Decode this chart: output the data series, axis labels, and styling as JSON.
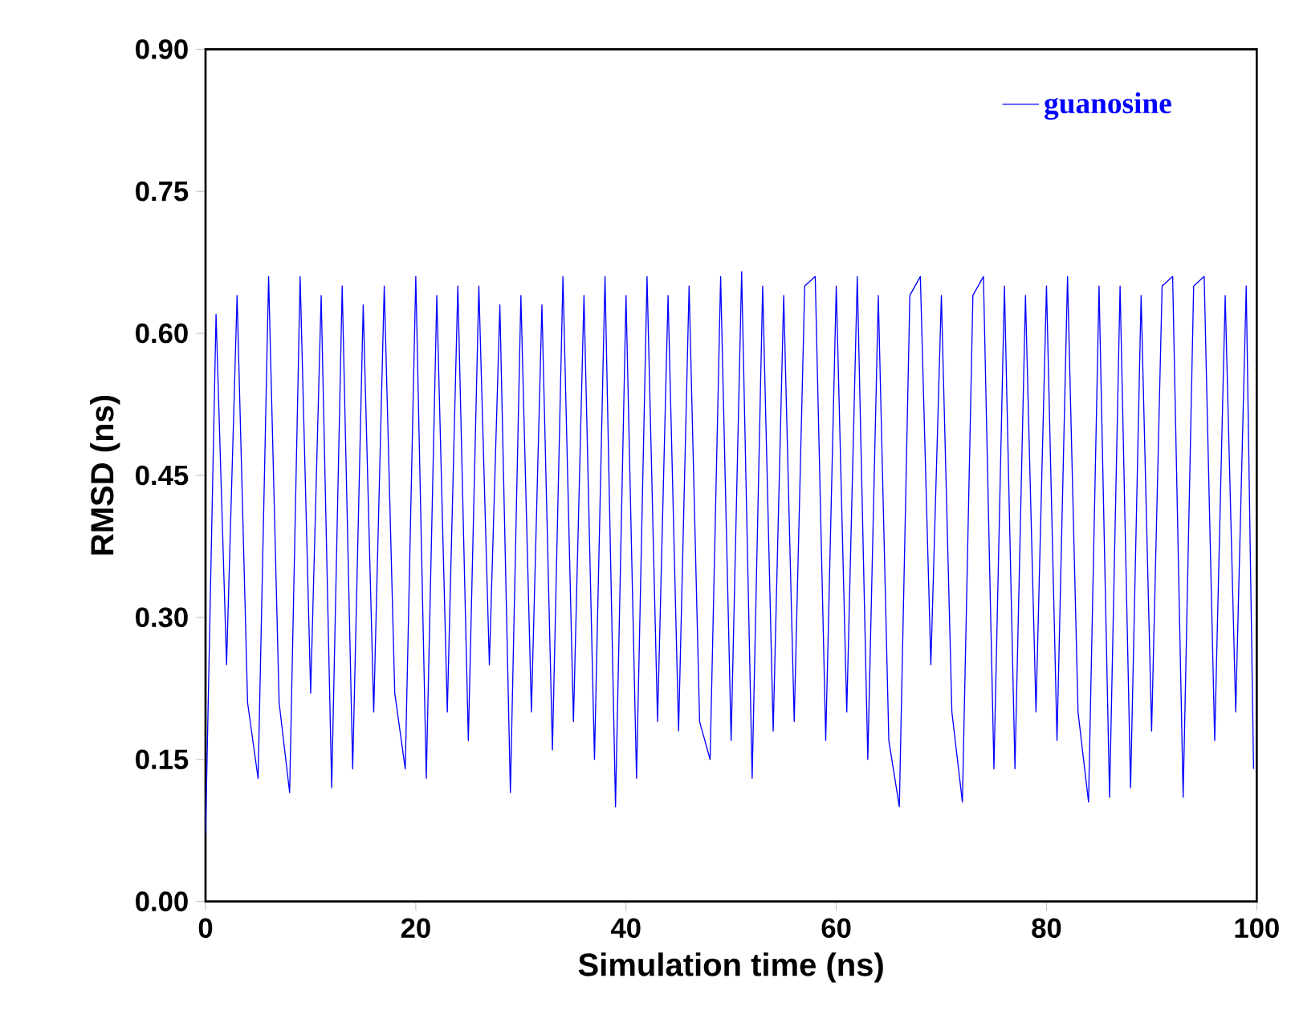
{
  "chart_data": {
    "type": "line",
    "xlabel": "Simulation time (ns)",
    "ylabel": "RMSD (ns)",
    "xlim": [
      0,
      100
    ],
    "xticks": [
      0,
      20,
      40,
      60,
      80,
      100
    ],
    "ylim": [
      0,
      0.9
    ],
    "yticks": [
      {
        "value": 0,
        "label": "0.00"
      },
      {
        "value": 0.15,
        "label": "0.15"
      },
      {
        "value": 0.3,
        "label": "0.30"
      },
      {
        "value": 0.45,
        "label": "0.45"
      },
      {
        "value": 0.6,
        "label": "0.60"
      },
      {
        "value": 0.75,
        "label": "0.75"
      },
      {
        "value": 0.9,
        "label": "0.90"
      }
    ],
    "legend": "top right",
    "grid": false,
    "marker": "none",
    "line_style": "solid",
    "x": [
      0,
      1,
      2,
      3,
      4,
      5,
      6,
      7,
      8,
      9,
      10,
      11,
      12,
      13,
      14,
      15,
      16,
      17,
      18,
      19,
      20,
      21,
      22,
      23,
      24,
      25,
      26,
      27,
      28,
      29,
      30,
      31,
      32,
      33,
      34,
      35,
      36,
      37,
      38,
      39,
      40,
      41,
      42,
      43,
      44,
      45,
      46,
      47,
      48,
      49,
      50,
      51,
      52,
      53,
      54,
      55,
      56,
      57,
      58,
      59,
      60,
      61,
      62,
      63,
      64,
      65,
      66,
      67,
      68,
      69,
      70,
      71,
      72,
      73,
      74,
      75,
      76,
      77,
      78,
      79,
      80,
      81,
      82,
      83,
      84,
      85,
      86,
      87,
      88,
      89,
      90,
      91,
      92,
      93,
      94,
      95,
      96,
      97,
      98,
      99,
      99.7
    ],
    "series": [
      {
        "name": "guanosine",
        "color": "#0000ff",
        "values": [
          0.07,
          0.62,
          0.25,
          0.64,
          0.21,
          0.13,
          0.66,
          0.21,
          0.115,
          0.66,
          0.22,
          0.64,
          0.12,
          0.65,
          0.14,
          0.63,
          0.2,
          0.65,
          0.22,
          0.14,
          0.66,
          0.13,
          0.64,
          0.2,
          0.65,
          0.17,
          0.65,
          0.25,
          0.63,
          0.115,
          0.64,
          0.2,
          0.63,
          0.16,
          0.66,
          0.19,
          0.64,
          0.15,
          0.66,
          0.1,
          0.64,
          0.13,
          0.66,
          0.19,
          0.64,
          0.18,
          0.65,
          0.19,
          0.15,
          0.66,
          0.17,
          0.665,
          0.13,
          0.65,
          0.18,
          0.64,
          0.19,
          0.65,
          0.66,
          0.17,
          0.65,
          0.2,
          0.66,
          0.15,
          0.64,
          0.17,
          0.1,
          0.64,
          0.66,
          0.25,
          0.64,
          0.2,
          0.105,
          0.64,
          0.66,
          0.14,
          0.65,
          0.14,
          0.64,
          0.2,
          0.65,
          0.17,
          0.66,
          0.2,
          0.105,
          0.65,
          0.11,
          0.65,
          0.12,
          0.64,
          0.18,
          0.65,
          0.66,
          0.11,
          0.65,
          0.66,
          0.17,
          0.64,
          0.2,
          0.65,
          0.14
        ]
      }
    ]
  }
}
